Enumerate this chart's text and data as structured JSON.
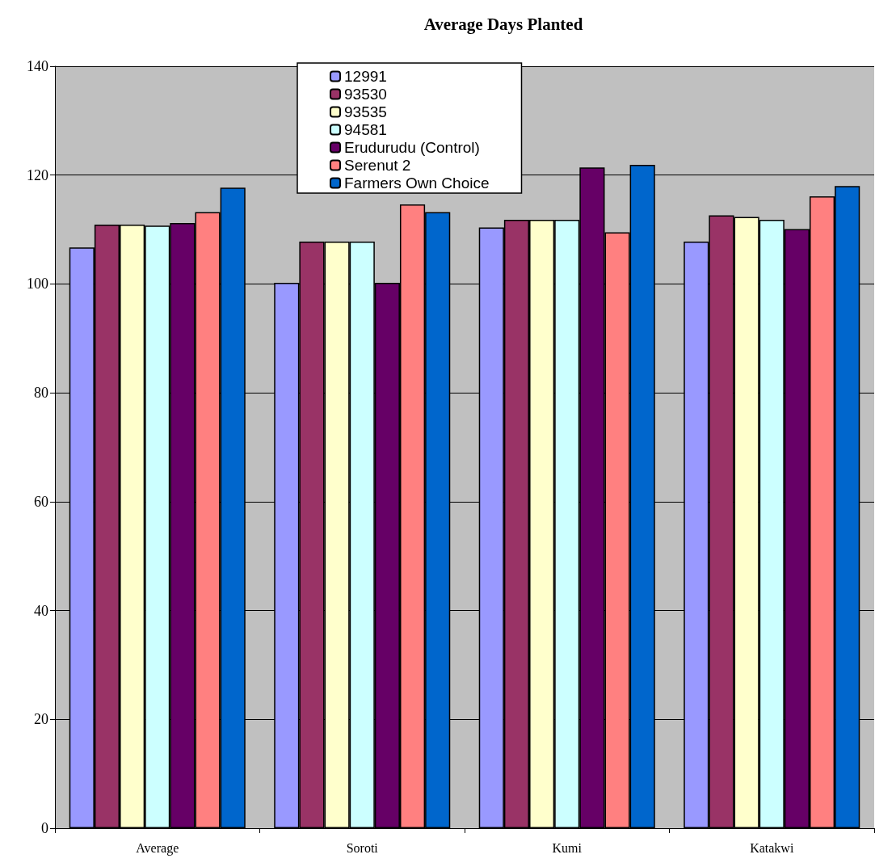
{
  "chart_data": {
    "type": "bar",
    "title": "Average Days Planted",
    "categories": [
      "Average",
      "Soroti",
      "Kumi",
      "Katakwi"
    ],
    "series": [
      {
        "name": "12991",
        "color": "#9999ff",
        "values": [
          106.7,
          100.2,
          110.4,
          107.8
        ]
      },
      {
        "name": "93530",
        "color": "#993366",
        "values": [
          110.9,
          107.8,
          111.8,
          112.6
        ]
      },
      {
        "name": "93535",
        "color": "#ffffcc",
        "values": [
          110.9,
          107.8,
          111.8,
          112.3
        ]
      },
      {
        "name": "94581",
        "color": "#ccffff",
        "values": [
          110.7,
          107.8,
          111.8,
          111.8
        ]
      },
      {
        "name": "Erudurudu (Control)",
        "color": "#660066",
        "values": [
          111.2,
          100.2,
          121.4,
          110.1
        ]
      },
      {
        "name": "Serenut 2",
        "color": "#ff8080",
        "values": [
          113.2,
          114.6,
          109.5,
          116.1
        ]
      },
      {
        "name": "Farmers Own Choice",
        "color": "#0066cc",
        "values": [
          117.7,
          113.2,
          121.9,
          118.0
        ]
      }
    ],
    "ylim": [
      0,
      140
    ],
    "yticks": [
      0,
      20,
      40,
      60,
      80,
      100,
      120,
      140
    ],
    "grid": "y",
    "legend": "top"
  }
}
